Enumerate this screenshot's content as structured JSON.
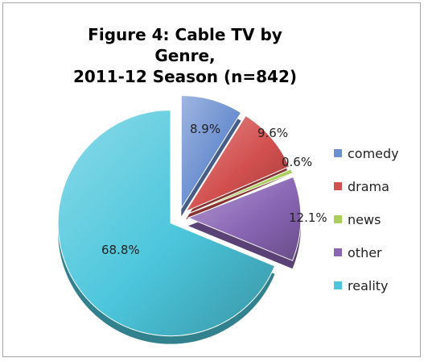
{
  "chart_data": {
    "type": "pie",
    "title_line1": "Figure 4:  Cable TV by Genre,",
    "title_line2": "2011-12 Season (n=842)",
    "exploded": true,
    "legend_position": "right",
    "slices": [
      {
        "category": "comedy",
        "value": 8.9,
        "label": "8.9%",
        "color": "#6b8fd0"
      },
      {
        "category": "drama",
        "value": 9.6,
        "label": "9.6%",
        "color": "#d2504f"
      },
      {
        "category": "news",
        "value": 0.6,
        "label": "0.6%",
        "color": "#a9d05a"
      },
      {
        "category": "other",
        "value": 12.1,
        "label": "12.1%",
        "color": "#8a66b5"
      },
      {
        "category": "reality",
        "value": 68.8,
        "label": "68.8%",
        "color": "#4cc6dc"
      }
    ]
  }
}
